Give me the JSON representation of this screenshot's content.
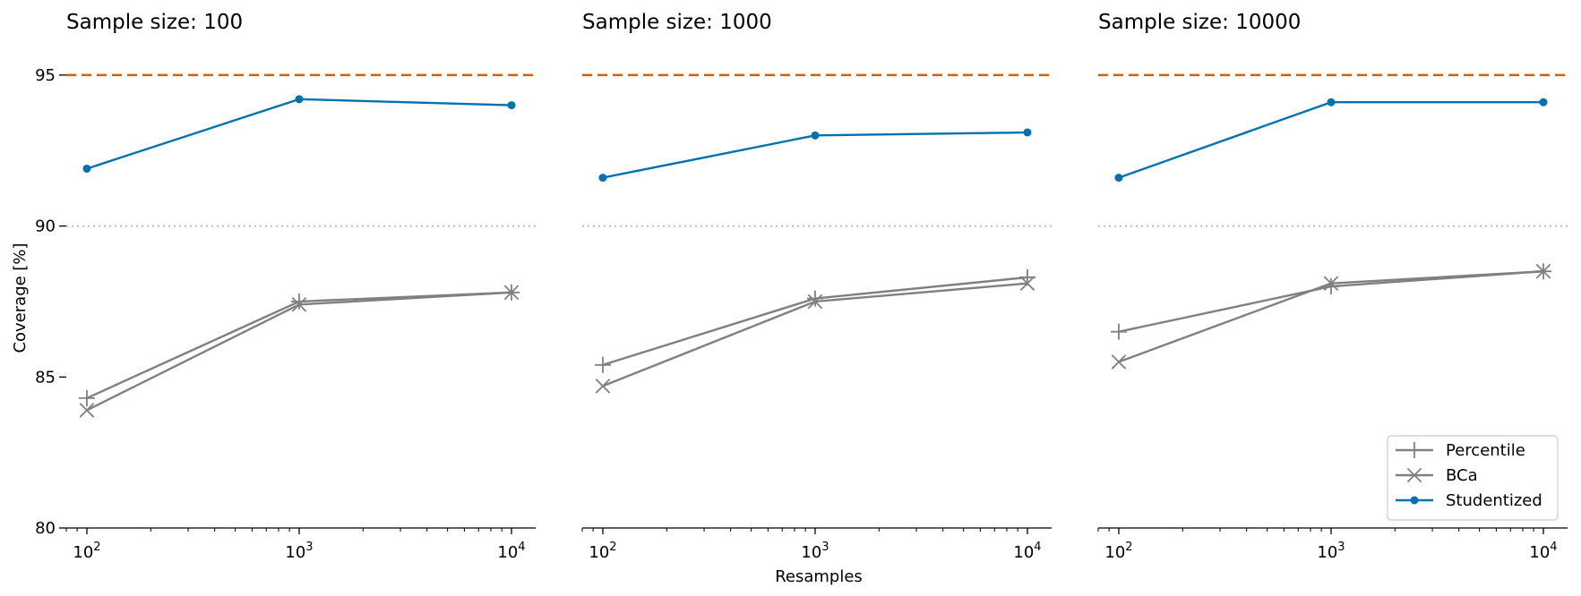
{
  "chart_data": {
    "type": "line",
    "xlabel": "Resamples",
    "ylabel": "Coverage [%]",
    "x_scale": "log",
    "xlim": [
      80,
      13000
    ],
    "ylim": [
      80,
      96.3
    ],
    "x": [
      100,
      1000,
      10000
    ],
    "x_tick_values": [
      100,
      1000,
      10000
    ],
    "x_tick_labels": [
      {
        "base": "10",
        "exp": "2"
      },
      {
        "base": "10",
        "exp": "3"
      },
      {
        "base": "10",
        "exp": "4"
      }
    ],
    "y_ticks": [
      80,
      85,
      90,
      95
    ],
    "y_tick_labels": [
      "80",
      "85",
      "90",
      "95"
    ],
    "reference_lines": [
      {
        "y": 95,
        "color": "#d55e00",
        "style": "dashed"
      },
      {
        "y": 90,
        "color": "#bfbfbf",
        "style": "dotted"
      }
    ],
    "legend": {
      "placement": "lower-right",
      "panel": 2
    },
    "grid": false,
    "panels": [
      {
        "title": "Sample size: 100",
        "series": [
          {
            "name": "Percentile",
            "marker": "plus",
            "color": "#808080",
            "values": [
              84.3,
              87.5,
              87.8
            ]
          },
          {
            "name": "BCa",
            "marker": "x",
            "color": "#808080",
            "values": [
              83.9,
              87.4,
              87.8
            ]
          },
          {
            "name": "Studentized",
            "marker": "dot",
            "color": "#0072b2",
            "values": [
              91.9,
              94.2,
              94.0
            ]
          }
        ]
      },
      {
        "title": "Sample size: 1000",
        "series": [
          {
            "name": "Percentile",
            "marker": "plus",
            "color": "#808080",
            "values": [
              85.4,
              87.6,
              88.3
            ]
          },
          {
            "name": "BCa",
            "marker": "x",
            "color": "#808080",
            "values": [
              84.7,
              87.5,
              88.1
            ]
          },
          {
            "name": "Studentized",
            "marker": "dot",
            "color": "#0072b2",
            "values": [
              91.6,
              93.0,
              93.1
            ]
          }
        ]
      },
      {
        "title": "Sample size: 10000",
        "series": [
          {
            "name": "Percentile",
            "marker": "plus",
            "color": "#808080",
            "values": [
              86.5,
              88.0,
              88.5
            ]
          },
          {
            "name": "BCa",
            "marker": "x",
            "color": "#808080",
            "values": [
              85.5,
              88.1,
              88.5
            ]
          },
          {
            "name": "Studentized",
            "marker": "dot",
            "color": "#0072b2",
            "values": [
              91.6,
              94.1,
              94.1
            ]
          }
        ]
      }
    ]
  }
}
